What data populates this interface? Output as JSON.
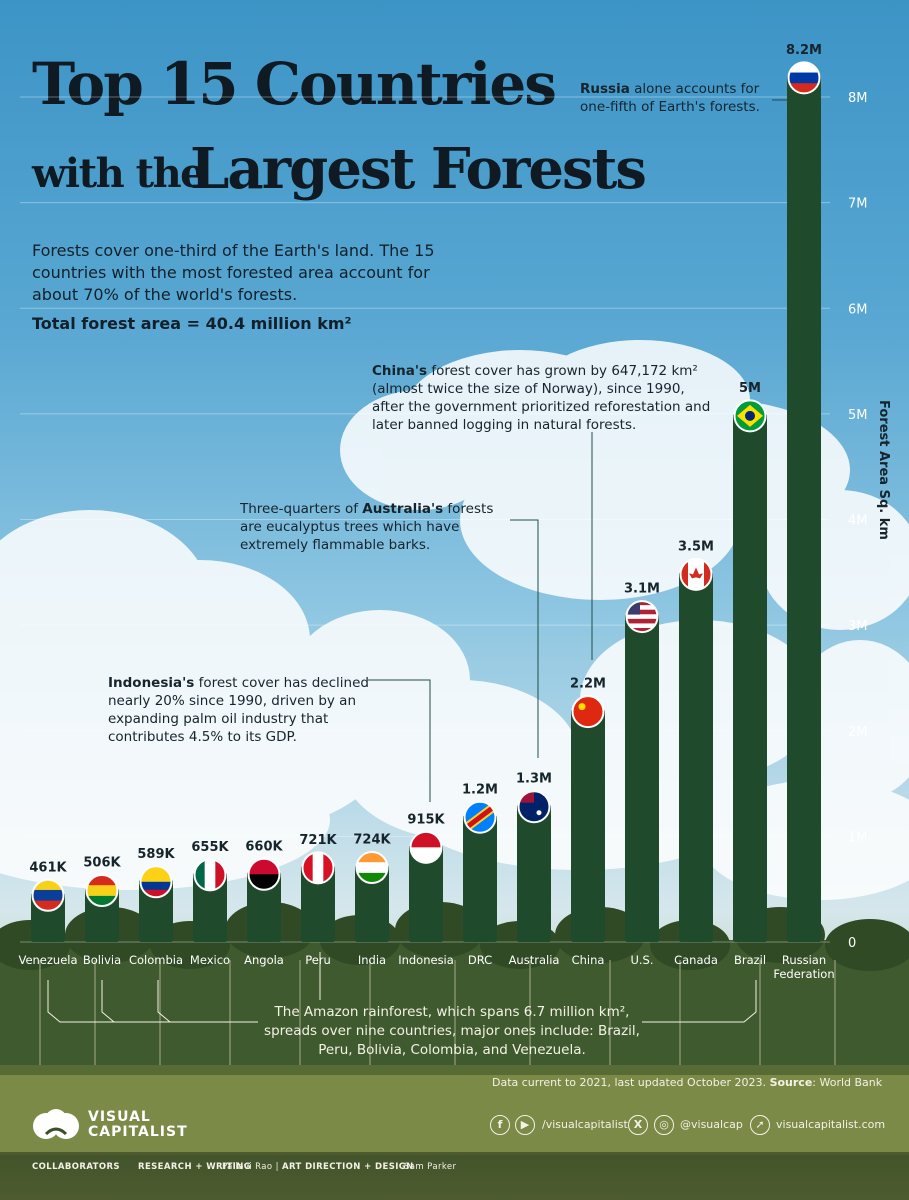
{
  "title": {
    "line1": "Top 15 Countries",
    "line2_prefix": "with the",
    "line2_main": "Largest Forests"
  },
  "intro": {
    "text": "Forests cover one-third of the Earth's land. The 15 countries with the most forested area account for about 70% of the world's forests.",
    "total": "Total forest area = 40.4 million km²"
  },
  "annotations": {
    "russia_bold": "Russia",
    "russia_rest": " alone accounts for one-fifth of Earth's forests.",
    "china_bold": "China's",
    "china_rest": " forest cover has grown by 647,172 km² (almost twice the size of Norway), since 1990, after the government prioritized reforestation and later banned logging in natural forests.",
    "australia_pre": "Three-quarters of ",
    "australia_bold": "Australia's",
    "australia_rest": " forests are eucalyptus trees which have extremely flammable barks.",
    "indonesia_bold": "Indonesia's",
    "indonesia_rest": " forest cover has declined nearly 20% since 1990, driven by an expanding palm oil industry that contributes 4.5% to its GDP.",
    "amazon": "The Amazon rainforest, which spans 6.7 million km², spreads over nine countries, major ones include: Brazil, Peru, Bolivia, Colombia, and Venezuela."
  },
  "footer": {
    "source_note": "Data current to 2021, last updated October 2023.",
    "source_label": "Source",
    "source_value": ": World Bank",
    "logo_line1": "VISUAL",
    "logo_line2": "CAPITALIST",
    "handle_1": "/visualcapitalist",
    "handle_2": "@visualcap",
    "site": "visualcapitalist.com",
    "collaborators": "COLLABORATORS",
    "research_label": "RESEARCH + WRITING",
    "research_name": "Pallavi Rao |",
    "art_label": "ART DIRECTION + DESIGN",
    "art_name": "Sam Parker"
  },
  "colors": {
    "bar": "#1f4a2c",
    "axis_text": "#ffffff",
    "title": "#0f1a22"
  },
  "chart_data": {
    "type": "bar",
    "ylabel": "Forest Area Sq. km",
    "ylim": [
      0,
      8500000
    ],
    "yticks": [
      0,
      1000000,
      2000000,
      3000000,
      4000000,
      5000000,
      6000000,
      7000000,
      8000000
    ],
    "ytick_labels": [
      "0",
      "1M",
      "2M",
      "3M",
      "4M",
      "5M",
      "6M",
      "7M",
      "8M"
    ],
    "grid": true,
    "categories": [
      "Venezuela",
      "Bolivia",
      "Colombia",
      "Mexico",
      "Angola",
      "Peru",
      "India",
      "Indonesia",
      "DRC",
      "Australia",
      "China",
      "U.S.",
      "Canada",
      "Brazil",
      "Russian Federation"
    ],
    "values": [
      461000,
      506000,
      589000,
      655000,
      660000,
      721000,
      724000,
      915000,
      1200000,
      1300000,
      2200000,
      3100000,
      3500000,
      5000000,
      8200000
    ],
    "value_labels": [
      "461K",
      "506K",
      "589K",
      "655K",
      "660K",
      "721K",
      "724K",
      "915K",
      "1.2M",
      "1.3M",
      "2.2M",
      "3.1M",
      "3.5M",
      "5M",
      "8.2M"
    ],
    "flags": [
      "venezuela-flag",
      "bolivia-flag",
      "colombia-flag",
      "mexico-flag",
      "angola-flag",
      "peru-flag",
      "india-flag",
      "indonesia-flag",
      "drc-flag",
      "australia-flag",
      "china-flag",
      "us-flag",
      "canada-flag",
      "brazil-flag",
      "russia-flag"
    ]
  }
}
